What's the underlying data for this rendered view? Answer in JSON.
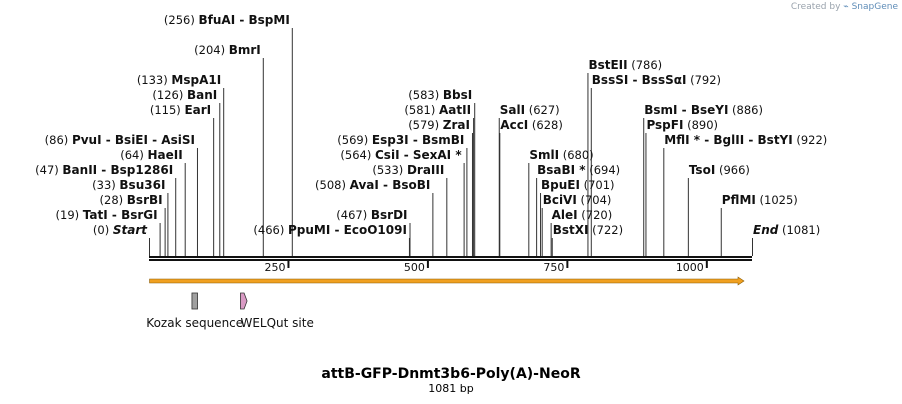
{
  "credit": {
    "prefix": "Created by",
    "brand": "SnapGene"
  },
  "title": "attB-GFP-Dnmt3b6-Poly(A)-NeoR",
  "length_label": "1081 bp",
  "sequence_length": 1081,
  "axis": {
    "ticks": [
      250,
      500,
      750,
      1000
    ],
    "tick_labels": [
      "250",
      "500",
      "750",
      "1000"
    ]
  },
  "orf": {
    "start": 1,
    "end": 1081,
    "color": "#f0a020"
  },
  "features": [
    {
      "name": "Kozak sequence",
      "start": 77,
      "end": 87,
      "color": "#a0a0a0"
    },
    {
      "name": "WELQut site",
      "start": 164,
      "end": 174,
      "color": "#d99ac4"
    }
  ],
  "sites": [
    {
      "pos_label": "(0)",
      "names": [
        "Start"
      ],
      "italic": true,
      "pos": 0,
      "row": 0,
      "side": "left"
    },
    {
      "pos_label": "(19)",
      "names": [
        "TatI",
        "BsrGI"
      ],
      "pos": 19,
      "row": 1,
      "side": "left"
    },
    {
      "pos_label": "(28)",
      "names": [
        "BsrBI"
      ],
      "pos": 28,
      "row": 2,
      "side": "left"
    },
    {
      "pos_label": "(33)",
      "names": [
        "Bsu36I"
      ],
      "pos": 33,
      "row": 3,
      "side": "left"
    },
    {
      "pos_label": "(47)",
      "names": [
        "BanII",
        "Bsp1286I"
      ],
      "pos": 47,
      "row": 4,
      "side": "left"
    },
    {
      "pos_label": "(64)",
      "names": [
        "HaeII"
      ],
      "pos": 64,
      "row": 5,
      "side": "left"
    },
    {
      "pos_label": "(86)",
      "names": [
        "PvuI",
        "BsiEI",
        "AsiSI"
      ],
      "pos": 86,
      "row": 6,
      "side": "left"
    },
    {
      "pos_label": "(115)",
      "names": [
        "EarI"
      ],
      "pos": 115,
      "row": 8,
      "side": "left"
    },
    {
      "pos_label": "(126)",
      "names": [
        "BanI"
      ],
      "pos": 126,
      "row": 9,
      "side": "left"
    },
    {
      "pos_label": "(133)",
      "names": [
        "MspA1I"
      ],
      "pos": 133,
      "row": 10,
      "side": "left"
    },
    {
      "pos_label": "(204)",
      "names": [
        "BmrI"
      ],
      "pos": 204,
      "row": 12,
      "side": "left"
    },
    {
      "pos_label": "(256)",
      "names": [
        "BfuAI",
        "BspMI"
      ],
      "pos": 256,
      "row": 14,
      "side": "left"
    },
    {
      "pos_label": "(466)",
      "names": [
        "PpuMI",
        "EcoO109I"
      ],
      "pos": 466,
      "row": 0,
      "side": "left"
    },
    {
      "pos_label": "(467)",
      "names": [
        "BsrDI"
      ],
      "pos": 467,
      "row": 1,
      "side": "left"
    },
    {
      "pos_label": "(508)",
      "names": [
        "AvaI",
        "BsoBI"
      ],
      "pos": 508,
      "row": 3,
      "side": "left"
    },
    {
      "pos_label": "(533)",
      "names": [
        "DraIII"
      ],
      "pos": 533,
      "row": 4,
      "side": "left"
    },
    {
      "pos_label": "(564)",
      "names": [
        "CsiI",
        "SexAI *"
      ],
      "pos": 564,
      "row": 5,
      "side": "left"
    },
    {
      "pos_label": "(569)",
      "names": [
        "Esp3I",
        "BsmBI"
      ],
      "pos": 569,
      "row": 6,
      "side": "left"
    },
    {
      "pos_label": "(579)",
      "names": [
        "ZraI"
      ],
      "pos": 579,
      "row": 7,
      "side": "left"
    },
    {
      "pos_label": "(581)",
      "names": [
        "AatII"
      ],
      "pos": 581,
      "row": 8,
      "side": "left"
    },
    {
      "pos_label": "(583)",
      "names": [
        "BbsI"
      ],
      "pos": 583,
      "row": 9,
      "side": "left"
    },
    {
      "pos_label": "(627)",
      "names": [
        "SalI"
      ],
      "pos": 627,
      "row": 8,
      "side": "right"
    },
    {
      "pos_label": "(628)",
      "names": [
        "AccI"
      ],
      "pos": 628,
      "row": 7,
      "side": "right"
    },
    {
      "pos_label": "(680)",
      "names": [
        "SmlI"
      ],
      "pos": 680,
      "row": 5,
      "side": "right"
    },
    {
      "pos_label": "(694)",
      "names": [
        "BsaBI *"
      ],
      "pos": 694,
      "row": 4,
      "side": "right"
    },
    {
      "pos_label": "(701)",
      "names": [
        "BpuEI"
      ],
      "pos": 701,
      "row": 3,
      "side": "right"
    },
    {
      "pos_label": "(704)",
      "names": [
        "BciVI"
      ],
      "pos": 704,
      "row": 2,
      "side": "right"
    },
    {
      "pos_label": "(720)",
      "names": [
        "AleI"
      ],
      "pos": 720,
      "row": 1,
      "side": "right"
    },
    {
      "pos_label": "(722)",
      "names": [
        "BstXI"
      ],
      "pos": 722,
      "row": 0,
      "side": "right"
    },
    {
      "pos_label": "(786)",
      "names": [
        "BstEII"
      ],
      "pos": 786,
      "row": 11,
      "side": "right"
    },
    {
      "pos_label": "(792)",
      "names": [
        "BssSI",
        "BssSαI"
      ],
      "pos": 792,
      "row": 10,
      "side": "right"
    },
    {
      "pos_label": "(886)",
      "names": [
        "BsmI",
        "BseYI"
      ],
      "pos": 886,
      "row": 8,
      "side": "right"
    },
    {
      "pos_label": "(890)",
      "names": [
        "PspFI"
      ],
      "pos": 890,
      "row": 7,
      "side": "right"
    },
    {
      "pos_label": "(922)",
      "names": [
        "MflI *",
        "BglII",
        "BstYI"
      ],
      "pos": 922,
      "row": 6,
      "side": "right"
    },
    {
      "pos_label": "(966)",
      "names": [
        "TsoI"
      ],
      "pos": 966,
      "row": 4,
      "side": "right"
    },
    {
      "pos_label": "(1025)",
      "names": [
        "PflMI"
      ],
      "pos": 1025,
      "row": 2,
      "side": "right"
    },
    {
      "pos_label": "(1081)",
      "names": [
        "End"
      ],
      "italic": true,
      "pos": 1081,
      "row": 0,
      "side": "right"
    }
  ]
}
